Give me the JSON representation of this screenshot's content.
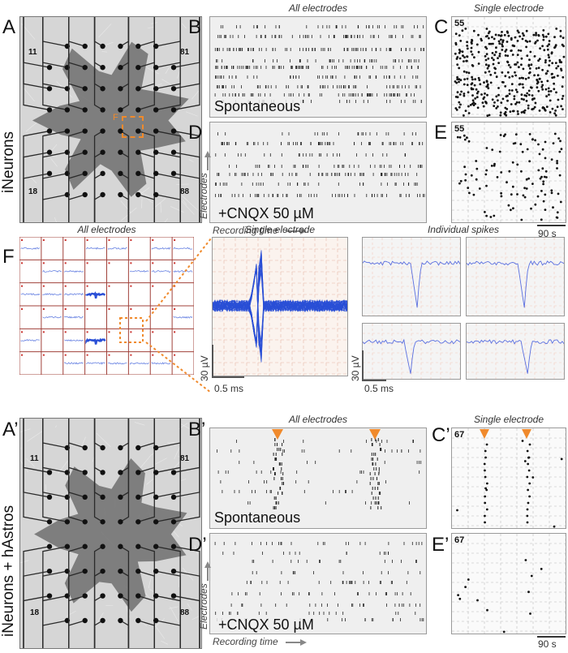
{
  "panels": {
    "A": "A",
    "B": "B",
    "C": "C",
    "D": "D",
    "E": "E",
    "F": "F",
    "A2": "A’",
    "B2": "B’",
    "C2": "C’",
    "D2": "D’",
    "E2": "E’"
  },
  "row1": {
    "side_label": "iNeurons",
    "cap_all": "All electrodes",
    "cap_single": "Single electrode",
    "cond_spont": "Spontaneous",
    "cond_cnqx": "+CNQX 50 µM",
    "electrode_id": "55",
    "inset_label": "F",
    "grid_labels": [
      "11",
      "81",
      "18",
      "88"
    ],
    "axis_y": "Electrodes",
    "axis_x": "Recording time",
    "time_scale": "90 s"
  },
  "rowF": {
    "cap_all": "All electrodes",
    "cap_single": "Single electrode",
    "cap_spikes": "Individual spikes",
    "v_scale": "30 µV",
    "t_scale": "0.5 ms",
    "v_scale2": "30 µV",
    "t_scale2": "0.5 ms"
  },
  "row2": {
    "side_label": "iNeurons + hAstros",
    "cap_all": "All electrodes",
    "cap_single": "Single electrode",
    "cond_spont": "Spontaneous",
    "cond_cnqx": "+CNQX 50 µM",
    "electrode_id": "67",
    "grid_labels": [
      "11",
      "81",
      "18",
      "88"
    ],
    "axis_y": "Electrodes",
    "axis_x": "Recording time",
    "time_scale": "90 s"
  },
  "colors": {
    "accent": "#f08a2c",
    "trace": "#2a4fd6",
    "grid": "#a0413a",
    "raster": "#222222"
  }
}
